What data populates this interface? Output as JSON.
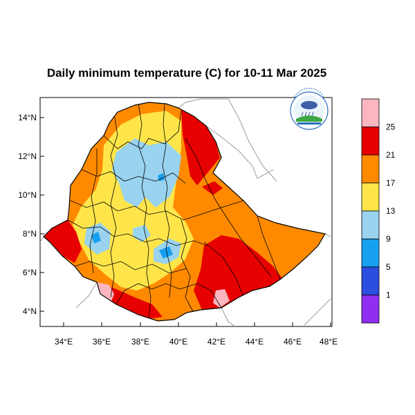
{
  "title": "Daily minimum temperature (C) for 10-11 Mar 2025",
  "lat_ticks": [
    "14°N",
    "12°N",
    "10°N",
    "8°N",
    "6°N",
    "4°N"
  ],
  "lon_ticks": [
    "34°E",
    "36°E",
    "38°E",
    "40°E",
    "42°E",
    "44°E",
    "46°E",
    "48°E"
  ],
  "colorbar": {
    "bins": [
      {
        "color": "#fbb6c0",
        "label": "25"
      },
      {
        "color": "#e60000",
        "label": "21"
      },
      {
        "color": "#ff8a00",
        "label": "17"
      },
      {
        "color": "#ffe54a",
        "label": "13"
      },
      {
        "color": "#99d3ef",
        "label": "9"
      },
      {
        "color": "#17a0f0",
        "label": "5"
      },
      {
        "color": "#2b4ee0",
        "label": "1"
      },
      {
        "color": "#8f2ef0",
        "label": ""
      }
    ]
  },
  "logo": {
    "icon": "ethiopian-meteorology-institute-logo"
  },
  "colors": {
    "land_outline": "#000000",
    "neighbor_border": "#999999",
    "district_border": "#000000"
  }
}
